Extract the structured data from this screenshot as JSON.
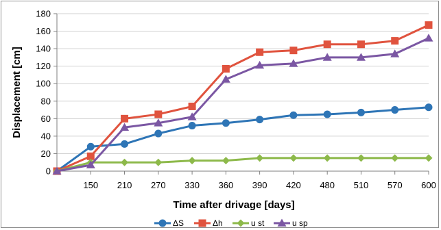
{
  "chart_data": {
    "type": "line",
    "title": "",
    "xlabel": "Time after drivage [days]",
    "ylabel": "Displacement [cm]",
    "categories": [
      "",
      "150",
      "210",
      "270",
      "330",
      "360",
      "390",
      "420",
      "480",
      "510",
      "570",
      "600"
    ],
    "yticks": [
      "0",
      "20",
      "40",
      "60",
      "80",
      "100",
      "120",
      "140",
      "160",
      "180"
    ],
    "ylim": [
      0,
      180
    ],
    "grid": true,
    "legend_position": "bottom",
    "series": [
      {
        "name": "ΔS",
        "color": "#2e75b6",
        "marker": "circle",
        "values": [
          0,
          28,
          31,
          43,
          52,
          55,
          59,
          64,
          65,
          67,
          70,
          73
        ]
      },
      {
        "name": "Δh",
        "color": "#e0533e",
        "marker": "square",
        "values": [
          0,
          17,
          60,
          65,
          74,
          117,
          136,
          138,
          145,
          145,
          149,
          167
        ]
      },
      {
        "name": "u st",
        "color": "#8db94a",
        "marker": "diamond",
        "values": [
          0,
          10,
          10,
          10,
          12,
          12,
          15,
          15,
          15,
          15,
          15,
          15
        ]
      },
      {
        "name": "u sp",
        "color": "#7b57a3",
        "marker": "triangle",
        "values": [
          0,
          7,
          50,
          55,
          62,
          105,
          121,
          123,
          130,
          130,
          134,
          152
        ]
      }
    ]
  }
}
